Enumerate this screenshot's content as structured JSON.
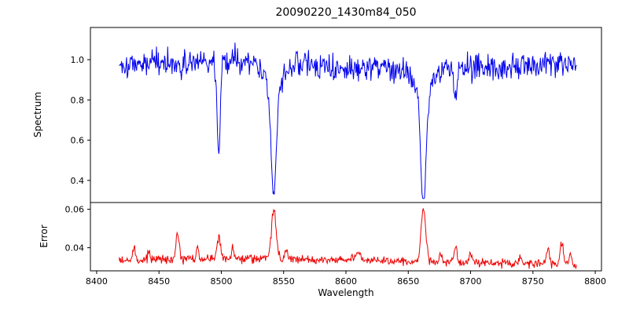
{
  "title": "20090220_1430m84_050",
  "chart_data": {
    "type": "line",
    "title": "20090220_1430m84_050",
    "xlabel": "Wavelength",
    "xlim": [
      8395,
      8805
    ],
    "x_range": [
      8418,
      8785
    ],
    "x_step": 0.5,
    "xticks": [
      8400,
      8450,
      8500,
      8550,
      8600,
      8650,
      8700,
      8750,
      8800
    ],
    "xtick_labels": [
      "8400",
      "8450",
      "8500",
      "8550",
      "8600",
      "8650",
      "8700",
      "8750",
      "8800"
    ],
    "legend": "none",
    "grid": false,
    "panels": [
      {
        "name": "spectrum",
        "ylabel": "Spectrum",
        "color": "#0000ee",
        "ylim": [
          0.29,
          1.16
        ],
        "yticks": [
          0.4,
          0.6,
          0.8,
          1.0
        ],
        "ytick_labels": [
          "0.4",
          "0.6",
          "0.8",
          "1.0"
        ],
        "continuum": 0.975,
        "wiggle_amp": 0.015,
        "wiggle_period": 55,
        "noise_sigma": 0.032,
        "absorption_lines": [
          {
            "center": 8498.0,
            "depth": 0.45,
            "width": 1.3
          },
          {
            "center": 8542.1,
            "depth": 0.52,
            "width": 2.0
          },
          {
            "center": 8542.1,
            "depth": 0.13,
            "width": 6.5
          },
          {
            "center": 8662.1,
            "depth": 0.55,
            "width": 2.0
          },
          {
            "center": 8662.1,
            "depth": 0.14,
            "width": 6.5
          },
          {
            "center": 8688.0,
            "depth": 0.16,
            "width": 1.5
          },
          {
            "center": 8468.0,
            "depth": 0.08,
            "width": 1.0
          }
        ]
      },
      {
        "name": "error",
        "ylabel": "Error",
        "color": "#ee0000",
        "ylim": [
          0.028,
          0.0635
        ],
        "yticks": [
          0.04,
          0.06
        ],
        "ytick_labels": [
          "0.04",
          "0.06"
        ],
        "baseline": 0.033,
        "wiggle_amp": 0.0015,
        "wiggle_period": 80,
        "noise_sigma": 0.0011,
        "peaks": [
          {
            "center": 8430.0,
            "height": 0.007,
            "width": 1.0
          },
          {
            "center": 8442.0,
            "height": 0.004,
            "width": 1.0
          },
          {
            "center": 8465.0,
            "height": 0.013,
            "width": 1.2
          },
          {
            "center": 8481.0,
            "height": 0.006,
            "width": 1.0
          },
          {
            "center": 8498.0,
            "height": 0.011,
            "width": 1.3
          },
          {
            "center": 8509.0,
            "height": 0.005,
            "width": 1.0
          },
          {
            "center": 8542.1,
            "height": 0.026,
            "width": 1.8
          },
          {
            "center": 8552.0,
            "height": 0.005,
            "width": 1.0
          },
          {
            "center": 8610.0,
            "height": 0.004,
            "width": 2.0
          },
          {
            "center": 8662.1,
            "height": 0.028,
            "width": 1.8
          },
          {
            "center": 8676.0,
            "height": 0.005,
            "width": 1.0
          },
          {
            "center": 8688.0,
            "height": 0.007,
            "width": 1.2
          },
          {
            "center": 8700.0,
            "height": 0.005,
            "width": 1.0
          },
          {
            "center": 8740.0,
            "height": 0.004,
            "width": 1.0
          },
          {
            "center": 8762.0,
            "height": 0.008,
            "width": 1.2
          },
          {
            "center": 8773.0,
            "height": 0.011,
            "width": 1.2
          },
          {
            "center": 8780.0,
            "height": 0.006,
            "width": 1.0
          }
        ]
      }
    ]
  }
}
